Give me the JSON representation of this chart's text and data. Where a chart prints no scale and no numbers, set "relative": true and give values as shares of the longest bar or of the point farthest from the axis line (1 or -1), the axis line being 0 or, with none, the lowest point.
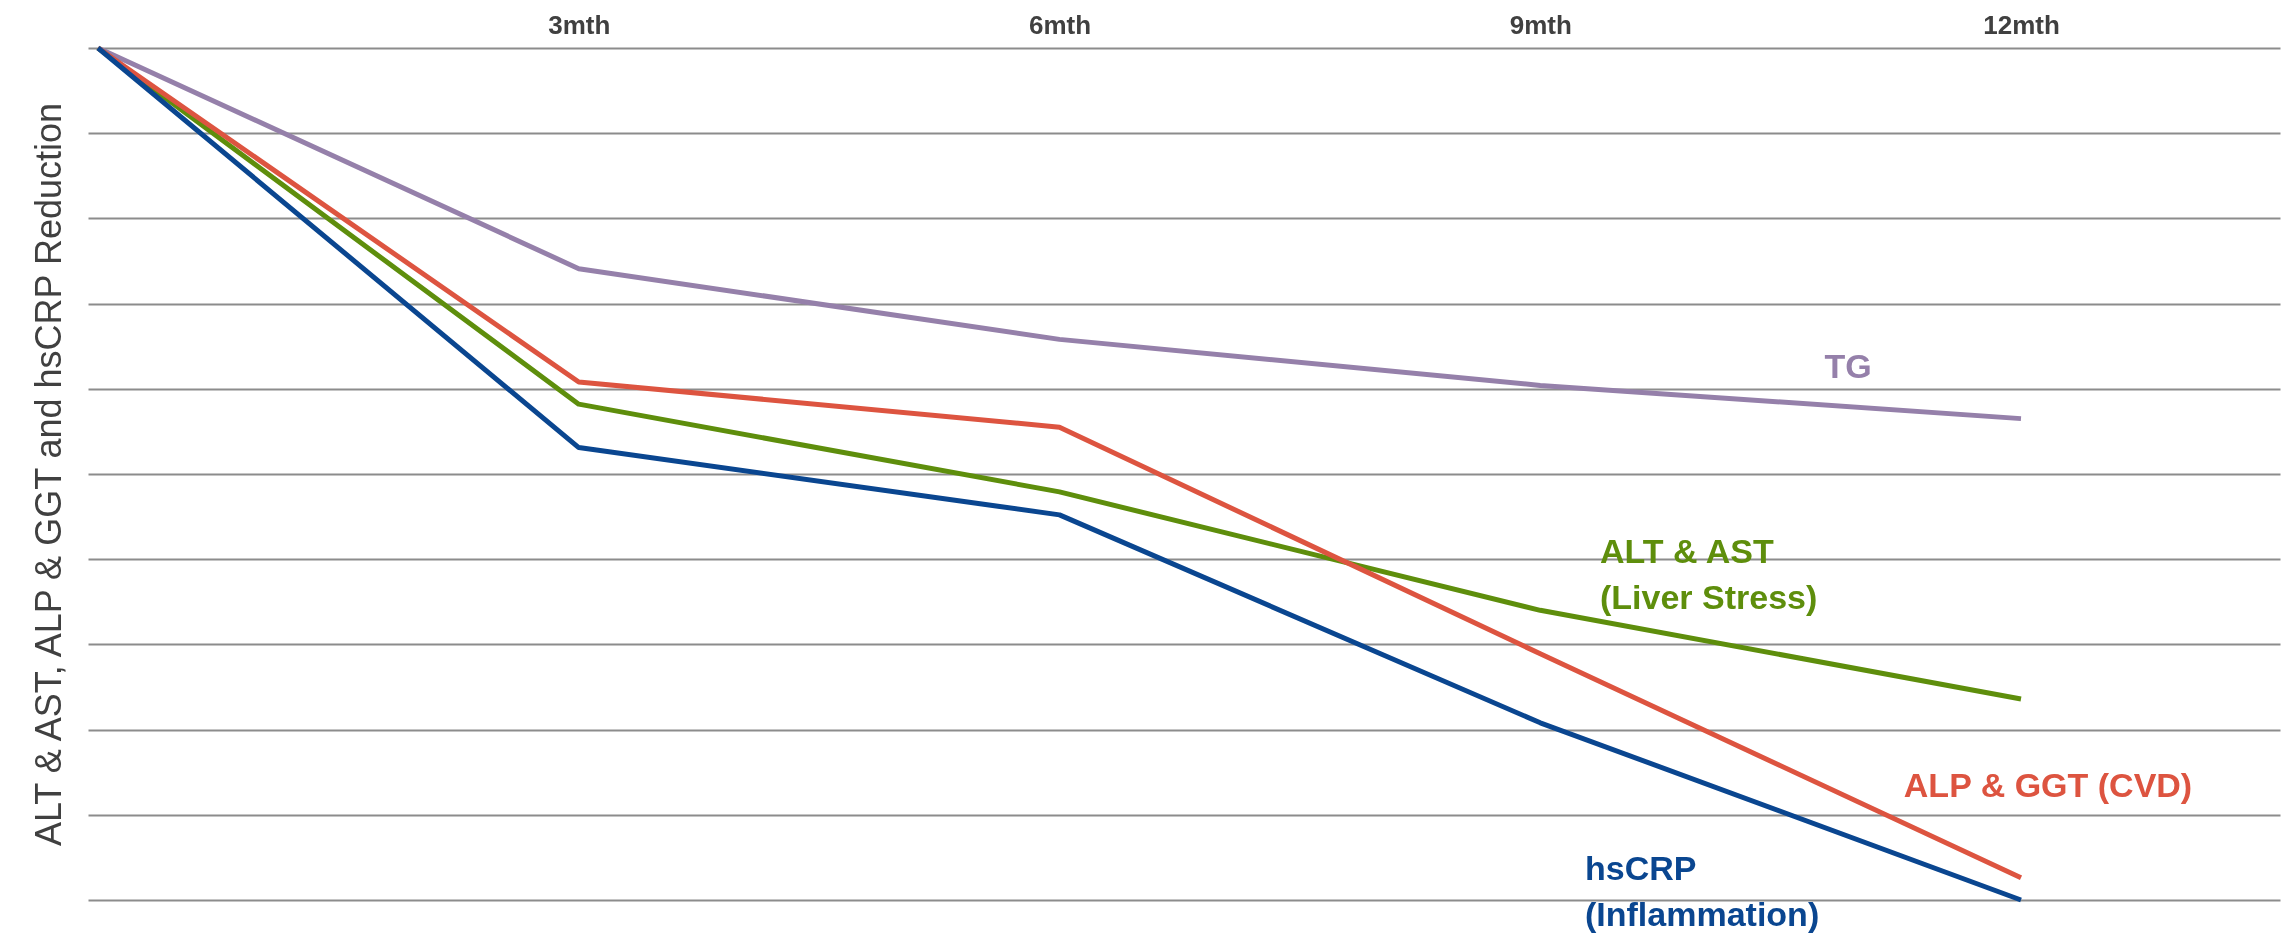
{
  "chart_data": {
    "type": "line",
    "ylabel": "ALT & AST, ALP & GGT and hsCRP Reduction",
    "relative": true,
    "grid": "y",
    "categories": [
      null,
      "3mth",
      "6mth",
      "9mth",
      "12mth"
    ],
    "series": [
      {
        "name": "TG",
        "color": "#9580aa",
        "values": [
          1,
          0.741,
          0.658,
          0.604,
          0.565
        ]
      },
      {
        "name": "ALT & AST\n(Liver Stress)",
        "color": "#5e8e0c",
        "values": [
          1,
          0.582,
          0.479,
          0.34,
          0.236
        ]
      },
      {
        "name": "ALP & GGT (CVD)",
        "color": "#dd5440",
        "values": [
          1,
          0.608,
          0.555,
          0.289,
          0.026
        ]
      },
      {
        "name": "hsCRP\n(Inflammation)",
        "color": "#0a4690",
        "values": [
          1,
          0.531,
          0.452,
          0.208,
          0
        ]
      }
    ]
  }
}
